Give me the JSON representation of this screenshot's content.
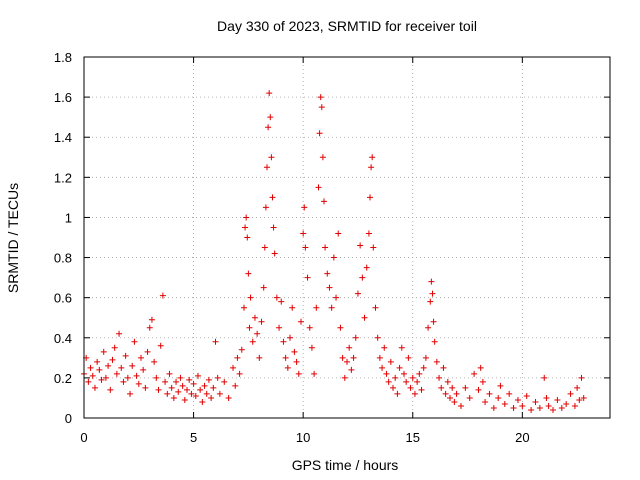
{
  "chart_data": {
    "type": "scatter",
    "title": "Day 330 of 2023, SRMTID for receiver toil",
    "xlabel": "GPS time / hours",
    "ylabel": "SRMTID / TECUs",
    "xlim": [
      0,
      24
    ],
    "ylim": [
      0,
      1.8
    ],
    "xticks": [
      0,
      5,
      10,
      15,
      20
    ],
    "xtick_labels": [
      "0",
      "5",
      "10",
      "15",
      "20"
    ],
    "yticks": [
      0,
      0.2,
      0.4,
      0.6,
      0.8,
      1.0,
      1.2,
      1.4,
      1.6,
      1.8
    ],
    "ytick_labels": [
      "0",
      "0.2",
      "0.4",
      "0.6",
      "0.8",
      "1",
      "1.2",
      "1.4",
      "1.6",
      "1.8"
    ],
    "grid": true,
    "marker": "+",
    "series": [
      {
        "name": "SRMTID",
        "color": "#e00000",
        "points": [
          [
            0.0,
            0.22
          ],
          [
            0.1,
            0.3
          ],
          [
            0.2,
            0.18
          ],
          [
            0.3,
            0.25
          ],
          [
            0.4,
            0.21
          ],
          [
            0.5,
            0.15
          ],
          [
            0.6,
            0.28
          ],
          [
            0.7,
            0.24
          ],
          [
            0.8,
            0.19
          ],
          [
            0.9,
            0.33
          ],
          [
            1.0,
            0.2
          ],
          [
            1.1,
            0.26
          ],
          [
            1.2,
            0.14
          ],
          [
            1.3,
            0.29
          ],
          [
            1.4,
            0.35
          ],
          [
            1.5,
            0.22
          ],
          [
            1.6,
            0.42
          ],
          [
            1.7,
            0.25
          ],
          [
            1.8,
            0.18
          ],
          [
            1.9,
            0.31
          ],
          [
            2.0,
            0.2
          ],
          [
            2.1,
            0.12
          ],
          [
            2.2,
            0.26
          ],
          [
            2.3,
            0.38
          ],
          [
            2.4,
            0.21
          ],
          [
            2.5,
            0.17
          ],
          [
            2.6,
            0.3
          ],
          [
            2.7,
            0.24
          ],
          [
            2.8,
            0.15
          ],
          [
            2.9,
            0.33
          ],
          [
            3.0,
            0.45
          ],
          [
            3.1,
            0.49
          ],
          [
            3.2,
            0.28
          ],
          [
            3.3,
            0.2
          ],
          [
            3.4,
            0.14
          ],
          [
            3.5,
            0.36
          ],
          [
            3.6,
            0.61
          ],
          [
            3.7,
            0.18
          ],
          [
            3.8,
            0.12
          ],
          [
            3.9,
            0.22
          ],
          [
            4.0,
            0.15
          ],
          [
            4.1,
            0.1
          ],
          [
            4.2,
            0.18
          ],
          [
            4.3,
            0.13
          ],
          [
            4.4,
            0.2
          ],
          [
            4.5,
            0.16
          ],
          [
            4.6,
            0.09
          ],
          [
            4.7,
            0.14
          ],
          [
            4.8,
            0.19
          ],
          [
            4.9,
            0.12
          ],
          [
            5.0,
            0.17
          ],
          [
            5.1,
            0.11
          ],
          [
            5.2,
            0.21
          ],
          [
            5.3,
            0.14
          ],
          [
            5.4,
            0.08
          ],
          [
            5.5,
            0.16
          ],
          [
            5.6,
            0.12
          ],
          [
            5.7,
            0.19
          ],
          [
            5.8,
            0.1
          ],
          [
            5.9,
            0.15
          ],
          [
            6.0,
            0.38
          ],
          [
            6.1,
            0.2
          ],
          [
            6.2,
            0.12
          ],
          [
            6.4,
            0.18
          ],
          [
            6.6,
            0.1
          ],
          [
            6.8,
            0.25
          ],
          [
            6.9,
            0.16
          ],
          [
            7.0,
            0.3
          ],
          [
            7.1,
            0.22
          ],
          [
            7.2,
            0.34
          ],
          [
            7.3,
            0.55
          ],
          [
            7.35,
            0.95
          ],
          [
            7.4,
            1.0
          ],
          [
            7.45,
            0.9
          ],
          [
            7.5,
            0.72
          ],
          [
            7.55,
            0.45
          ],
          [
            7.6,
            0.6
          ],
          [
            7.7,
            0.38
          ],
          [
            7.8,
            0.5
          ],
          [
            7.9,
            0.42
          ],
          [
            8.0,
            0.3
          ],
          [
            8.1,
            0.48
          ],
          [
            8.2,
            0.65
          ],
          [
            8.25,
            0.85
          ],
          [
            8.3,
            1.05
          ],
          [
            8.35,
            1.25
          ],
          [
            8.4,
            1.45
          ],
          [
            8.45,
            1.62
          ],
          [
            8.5,
            1.5
          ],
          [
            8.55,
            1.3
          ],
          [
            8.6,
            1.1
          ],
          [
            8.65,
            0.95
          ],
          [
            8.7,
            0.82
          ],
          [
            8.8,
            0.6
          ],
          [
            8.9,
            0.45
          ],
          [
            9.0,
            0.58
          ],
          [
            9.1,
            0.38
          ],
          [
            9.2,
            0.3
          ],
          [
            9.3,
            0.25
          ],
          [
            9.4,
            0.4
          ],
          [
            9.5,
            0.55
          ],
          [
            9.6,
            0.33
          ],
          [
            9.7,
            0.28
          ],
          [
            9.8,
            0.22
          ],
          [
            9.9,
            0.48
          ],
          [
            10.0,
            0.92
          ],
          [
            10.05,
            1.05
          ],
          [
            10.1,
            0.85
          ],
          [
            10.2,
            0.7
          ],
          [
            10.3,
            0.45
          ],
          [
            10.4,
            0.35
          ],
          [
            10.5,
            0.22
          ],
          [
            10.6,
            0.55
          ],
          [
            10.7,
            1.15
          ],
          [
            10.75,
            1.42
          ],
          [
            10.8,
            1.6
          ],
          [
            10.85,
            1.55
          ],
          [
            10.9,
            1.3
          ],
          [
            10.95,
            1.08
          ],
          [
            11.0,
            0.85
          ],
          [
            11.1,
            0.72
          ],
          [
            11.2,
            0.65
          ],
          [
            11.3,
            0.55
          ],
          [
            11.4,
            0.8
          ],
          [
            11.5,
            0.6
          ],
          [
            11.6,
            0.92
          ],
          [
            11.7,
            0.45
          ],
          [
            11.8,
            0.3
          ],
          [
            11.9,
            0.2
          ],
          [
            12.0,
            0.28
          ],
          [
            12.1,
            0.35
          ],
          [
            12.2,
            0.24
          ],
          [
            12.3,
            0.3
          ],
          [
            12.4,
            0.4
          ],
          [
            12.5,
            0.62
          ],
          [
            12.6,
            0.86
          ],
          [
            12.7,
            0.7
          ],
          [
            12.8,
            0.5
          ],
          [
            12.9,
            0.75
          ],
          [
            13.0,
            0.92
          ],
          [
            13.05,
            1.1
          ],
          [
            13.1,
            1.25
          ],
          [
            13.15,
            1.3
          ],
          [
            13.2,
            0.85
          ],
          [
            13.3,
            0.55
          ],
          [
            13.4,
            0.4
          ],
          [
            13.5,
            0.3
          ],
          [
            13.6,
            0.25
          ],
          [
            13.7,
            0.35
          ],
          [
            13.8,
            0.22
          ],
          [
            13.9,
            0.18
          ],
          [
            14.0,
            0.28
          ],
          [
            14.1,
            0.15
          ],
          [
            14.2,
            0.2
          ],
          [
            14.3,
            0.12
          ],
          [
            14.4,
            0.25
          ],
          [
            14.5,
            0.35
          ],
          [
            14.6,
            0.22
          ],
          [
            14.7,
            0.18
          ],
          [
            14.8,
            0.3
          ],
          [
            14.9,
            0.15
          ],
          [
            15.0,
            0.2
          ],
          [
            15.1,
            0.12
          ],
          [
            15.2,
            0.18
          ],
          [
            15.3,
            0.22
          ],
          [
            15.4,
            0.14
          ],
          [
            15.5,
            0.25
          ],
          [
            15.6,
            0.3
          ],
          [
            15.7,
            0.45
          ],
          [
            15.8,
            0.58
          ],
          [
            15.85,
            0.68
          ],
          [
            15.9,
            0.62
          ],
          [
            15.95,
            0.48
          ],
          [
            16.0,
            0.38
          ],
          [
            16.1,
            0.28
          ],
          [
            16.2,
            0.2
          ],
          [
            16.3,
            0.15
          ],
          [
            16.4,
            0.25
          ],
          [
            16.5,
            0.12
          ],
          [
            16.6,
            0.18
          ],
          [
            16.7,
            0.1
          ],
          [
            16.8,
            0.15
          ],
          [
            16.9,
            0.08
          ],
          [
            17.0,
            0.12
          ],
          [
            17.2,
            0.06
          ],
          [
            17.4,
            0.15
          ],
          [
            17.6,
            0.1
          ],
          [
            17.8,
            0.22
          ],
          [
            18.0,
            0.14
          ],
          [
            18.1,
            0.25
          ],
          [
            18.2,
            0.18
          ],
          [
            18.3,
            0.08
          ],
          [
            18.5,
            0.12
          ],
          [
            18.7,
            0.05
          ],
          [
            18.9,
            0.1
          ],
          [
            19.0,
            0.16
          ],
          [
            19.2,
            0.07
          ],
          [
            19.4,
            0.12
          ],
          [
            19.6,
            0.05
          ],
          [
            19.8,
            0.09
          ],
          [
            20.0,
            0.06
          ],
          [
            20.2,
            0.11
          ],
          [
            20.4,
            0.04
          ],
          [
            20.6,
            0.08
          ],
          [
            20.8,
            0.05
          ],
          [
            21.0,
            0.2
          ],
          [
            21.1,
            0.1
          ],
          [
            21.2,
            0.06
          ],
          [
            21.4,
            0.04
          ],
          [
            21.6,
            0.09
          ],
          [
            21.8,
            0.05
          ],
          [
            22.0,
            0.07
          ],
          [
            22.2,
            0.12
          ],
          [
            22.4,
            0.06
          ],
          [
            22.5,
            0.15
          ],
          [
            22.6,
            0.09
          ],
          [
            22.7,
            0.2
          ],
          [
            22.8,
            0.1
          ]
        ]
      }
    ]
  }
}
